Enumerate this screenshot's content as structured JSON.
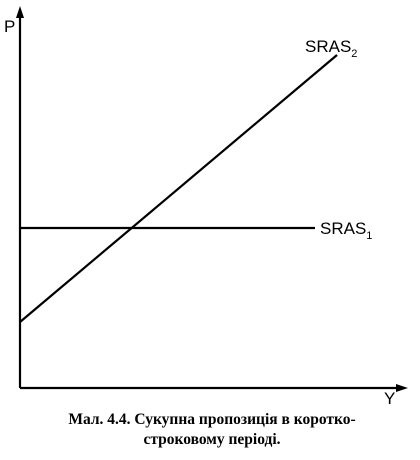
{
  "axes": {
    "y_label": "P",
    "x_label": "Y"
  },
  "curves": [
    {
      "name": "SRAS",
      "subscript": "1"
    },
    {
      "name": "SRAS",
      "subscript": "2"
    }
  ],
  "caption": {
    "lines": [
      "Мал. 4.4. Сукупна пропозиція в коротко-",
      "строковому періоді."
    ]
  }
}
